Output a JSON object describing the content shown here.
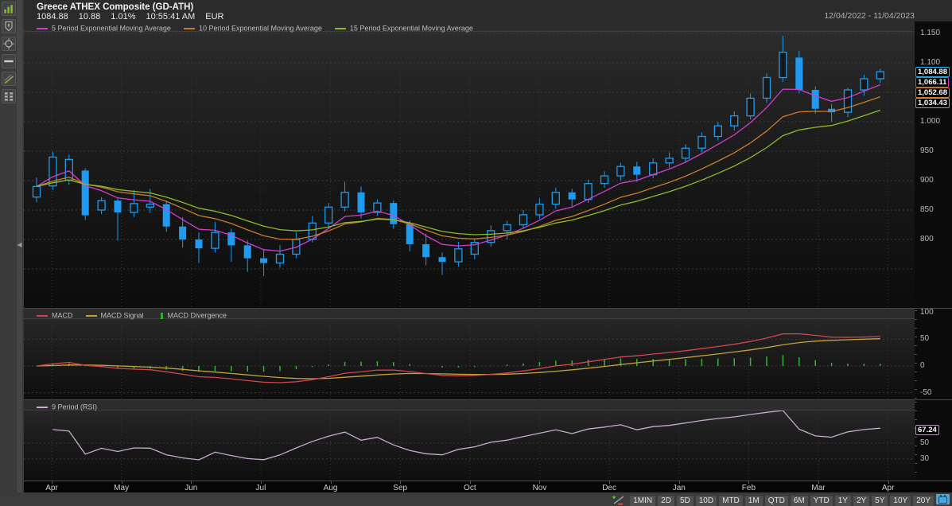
{
  "header": {
    "title": "Greece ATHEX Composite (GD-ATH)",
    "last_price": "1084.88",
    "change": "10.88",
    "change_pct": "1.01%",
    "quote_time": "10:55:41 AM",
    "currency": "EUR",
    "date_range": "12/04/2022 - 11/04/2023"
  },
  "left_toolbar": {
    "icons": [
      "chart-type",
      "annotations",
      "crosshair",
      "horizontal-line",
      "trend-line",
      "display-grid"
    ]
  },
  "main_legend": [
    {
      "label": "5 Period Exponential Moving Average",
      "color": "#d13ed1"
    },
    {
      "label": "10 Period Exponential Moving Average",
      "color": "#c97b2d"
    },
    {
      "label": "15 Period Exponential Moving Average",
      "color": "#8cbb2d"
    }
  ],
  "price_axis": {
    "tick_labels": [
      "1.150",
      "1.100",
      "1.000",
      "950",
      "900",
      "850",
      "800"
    ],
    "boxes": [
      {
        "text": "1,084.88",
        "border": "#2eb4ea",
        "name": "last-price"
      },
      {
        "text": "1,066.11",
        "border": "#d13ed1",
        "name": "ema5-value"
      },
      {
        "text": "1,052.68",
        "border": "#c97b2d",
        "name": "ema10-value"
      },
      {
        "text": "1,034.43",
        "border": "#7cc232",
        "name": "ema15-value"
      }
    ]
  },
  "macd_panel": {
    "legend": [
      {
        "label": "MACD",
        "color": "#cf4550",
        "swatch": "line"
      },
      {
        "label": "MACD Signal",
        "color": "#c2a23c",
        "swatch": "line"
      },
      {
        "label": "MACD Divergence",
        "color": "#2eaf32",
        "swatch": "bar"
      }
    ],
    "tick_labels": [
      "100",
      "50",
      "0",
      "-50"
    ]
  },
  "rsi_panel": {
    "legend": [
      {
        "label": "9 Period (RSI)",
        "color": "#c7abce"
      }
    ],
    "value_box": {
      "text": "67.24",
      "border": "#b69cc0"
    },
    "tick_labels": [
      "50",
      "30"
    ]
  },
  "x_axis": {
    "months": [
      "Apr",
      "May",
      "Jun",
      "Jul",
      "Aug",
      "Sep",
      "Oct",
      "Nov",
      "Dec",
      "Jan",
      "Feb",
      "Mar",
      "Apr"
    ]
  },
  "bottom_toolbar": {
    "buttons": [
      "1MIN",
      "2D",
      "5D",
      "10D",
      "MTD",
      "1M",
      "QTD",
      "6M",
      "YTD",
      "1Y",
      "2Y",
      "5Y",
      "10Y",
      "20Y"
    ],
    "calendar_active": true
  },
  "chart_data": {
    "type": "candlestick",
    "title": "Greece ATHEX Composite (GD-ATH), weekly, 12/04/2022 - 11/04/2023",
    "candle_color": "#1e9bf0",
    "up_style": "hollow",
    "down_style": "filled",
    "x_months": [
      "Apr",
      "May",
      "Jun",
      "Jul",
      "Aug",
      "Sep",
      "Oct",
      "Nov",
      "Dec",
      "Jan",
      "Feb",
      "Mar",
      "Apr"
    ],
    "price_gridlines": [
      1150,
      1100,
      1050,
      1000,
      950,
      900,
      850,
      800,
      750
    ],
    "ohlc": [
      [
        872,
        905,
        863,
        890
      ],
      [
        891,
        949,
        884,
        940
      ],
      [
        901,
        944,
        893,
        936
      ],
      [
        917,
        921,
        833,
        841
      ],
      [
        850,
        872,
        843,
        866
      ],
      [
        866,
        870,
        798,
        846
      ],
      [
        846,
        884,
        838,
        861
      ],
      [
        855,
        886,
        845,
        860
      ],
      [
        860,
        866,
        813,
        822
      ],
      [
        822,
        838,
        786,
        800
      ],
      [
        800,
        812,
        760,
        785
      ],
      [
        785,
        830,
        778,
        812
      ],
      [
        812,
        818,
        762,
        790
      ],
      [
        790,
        798,
        745,
        768
      ],
      [
        768,
        784,
        738,
        760
      ],
      [
        760,
        790,
        752,
        775
      ],
      [
        775,
        812,
        768,
        800
      ],
      [
        800,
        840,
        795,
        828
      ],
      [
        828,
        862,
        820,
        855
      ],
      [
        855,
        898,
        848,
        880
      ],
      [
        880,
        890,
        836,
        846
      ],
      [
        846,
        868,
        840,
        862
      ],
      [
        862,
        866,
        818,
        826
      ],
      [
        826,
        832,
        780,
        792
      ],
      [
        792,
        810,
        756,
        770
      ],
      [
        770,
        778,
        740,
        762
      ],
      [
        762,
        796,
        754,
        784
      ],
      [
        775,
        802,
        766,
        795
      ],
      [
        795,
        824,
        788,
        815
      ],
      [
        815,
        832,
        800,
        825
      ],
      [
        825,
        850,
        818,
        842
      ],
      [
        842,
        870,
        835,
        860
      ],
      [
        860,
        888,
        852,
        880
      ],
      [
        880,
        886,
        856,
        868
      ],
      [
        868,
        902,
        862,
        895
      ],
      [
        895,
        916,
        888,
        908
      ],
      [
        908,
        930,
        900,
        924
      ],
      [
        924,
        932,
        898,
        910
      ],
      [
        910,
        938,
        904,
        930
      ],
      [
        930,
        948,
        922,
        938
      ],
      [
        938,
        962,
        930,
        955
      ],
      [
        955,
        982,
        948,
        975
      ],
      [
        975,
        1000,
        968,
        993
      ],
      [
        993,
        1018,
        985,
        1010
      ],
      [
        1010,
        1048,
        1004,
        1040
      ],
      [
        1040,
        1082,
        1032,
        1075
      ],
      [
        1075,
        1146,
        1068,
        1118
      ],
      [
        1109,
        1120,
        1048,
        1054
      ],
      [
        1054,
        1060,
        1014,
        1022
      ],
      [
        1022,
        1030,
        1000,
        1016
      ],
      [
        1016,
        1058,
        1008,
        1054
      ],
      [
        1054,
        1080,
        1044,
        1073
      ],
      [
        1073,
        1090,
        1066,
        1085
      ]
    ],
    "overlays": [
      {
        "name": "5 Period Exponential Moving Average",
        "period": 5,
        "color": "#d13ed1",
        "last_value": 1066.11
      },
      {
        "name": "10 Period Exponential Moving Average",
        "period": 10,
        "color": "#c97b2d",
        "last_value": 1052.68
      },
      {
        "name": "15 Period Exponential Moving Average",
        "period": 15,
        "color": "#8cbb2d",
        "last_value": 1034.43
      }
    ],
    "indicator_panels": [
      {
        "type": "MACD",
        "series": [
          "MACD",
          "MACD Signal",
          "MACD Divergence"
        ],
        "params": {
          "fast": 12,
          "slow": 26,
          "signal": 9
        },
        "ylim": [
          -50,
          100
        ],
        "gridlines": [
          100,
          50,
          0,
          -50
        ],
        "colors": {
          "macd": "#cf4550",
          "signal": "#c2a23c",
          "divergence": "#2eaf32"
        }
      },
      {
        "type": "RSI",
        "series": [
          "9 Period (RSI)"
        ],
        "period": 9,
        "gridlines": [
          50,
          30
        ],
        "last_value": 67.24,
        "color": "#c7abce"
      }
    ],
    "last_price": 1084.88
  }
}
